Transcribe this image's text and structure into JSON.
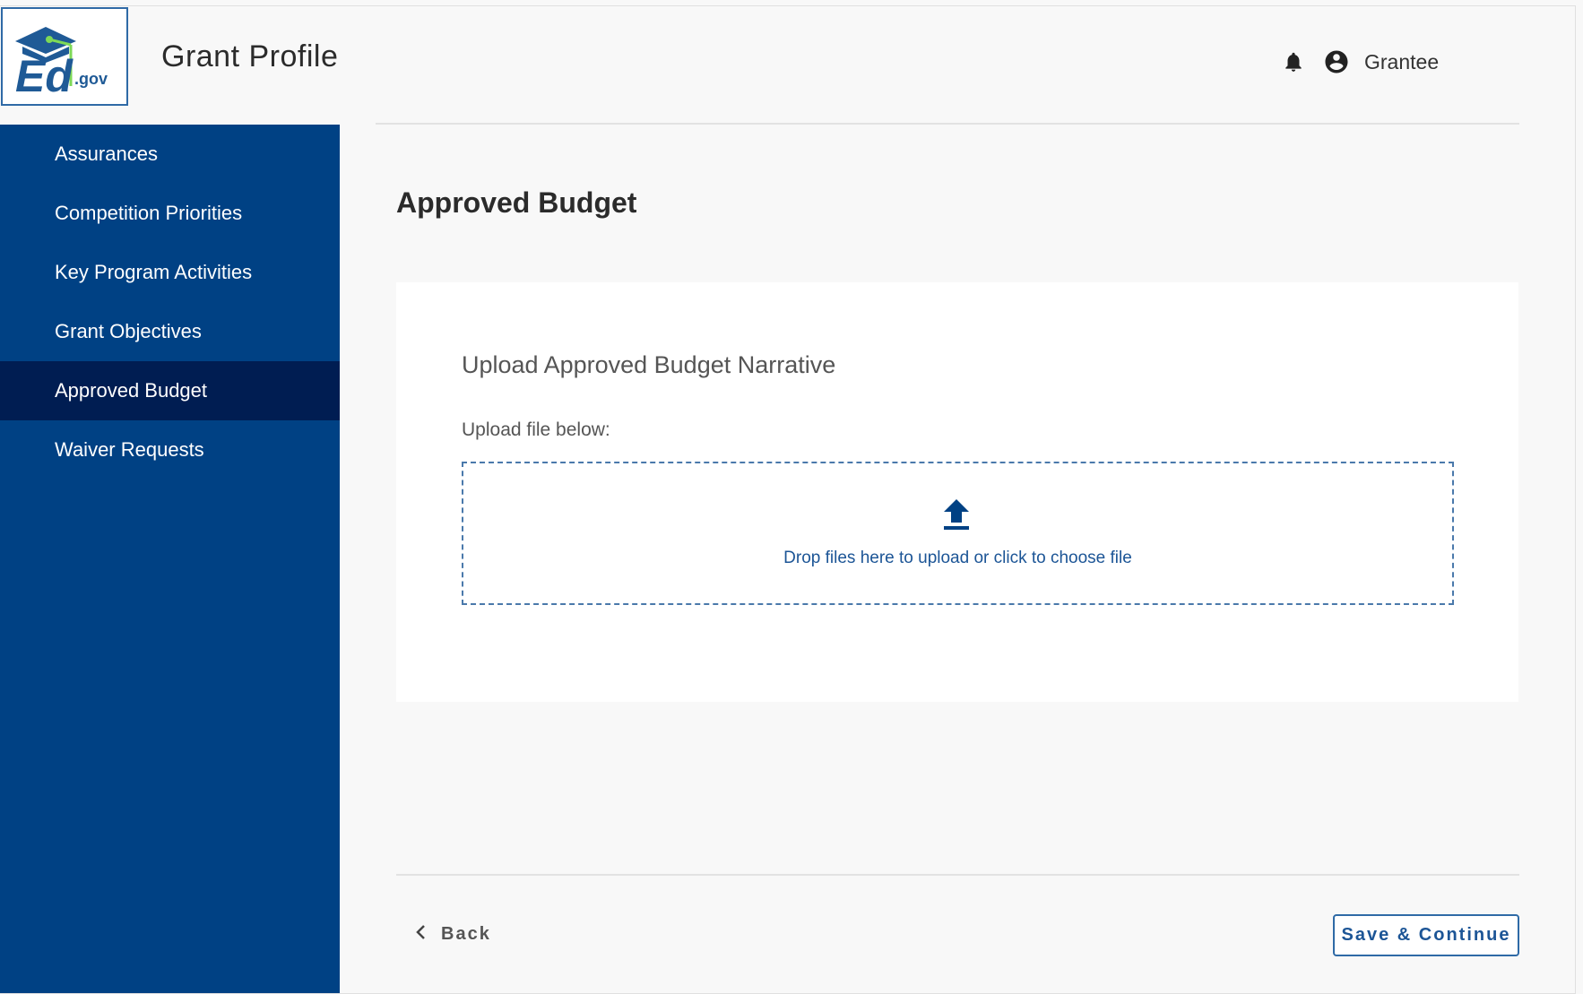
{
  "header": {
    "logo_text": "Ed.gov",
    "app_title": "Grant Profile",
    "user_name": "Grantee",
    "icons": [
      "bell-icon",
      "account-circle-icon"
    ]
  },
  "sidebar": {
    "items": [
      {
        "label": "Assurances",
        "active": false
      },
      {
        "label": "Competition Priorities",
        "active": false
      },
      {
        "label": "Key Program Activities",
        "active": false
      },
      {
        "label": "Grant Objectives",
        "active": false
      },
      {
        "label": "Approved Budget",
        "active": true
      },
      {
        "label": "Waiver Requests",
        "active": false
      }
    ]
  },
  "main": {
    "page_title": "Approved Budget",
    "card": {
      "title": "Upload Approved Budget Narrative",
      "label": "Upload file below:",
      "dropzone_text": "Drop files here to upload or click to choose file",
      "dropzone_icon": "upload-icon"
    }
  },
  "footer": {
    "back_label": "Back",
    "save_label": "Save & Continue"
  },
  "colors": {
    "sidebar": "#004184",
    "sidebar_active": "#001d52",
    "accent": "#1c5596",
    "logo_green": "#7ed957"
  }
}
